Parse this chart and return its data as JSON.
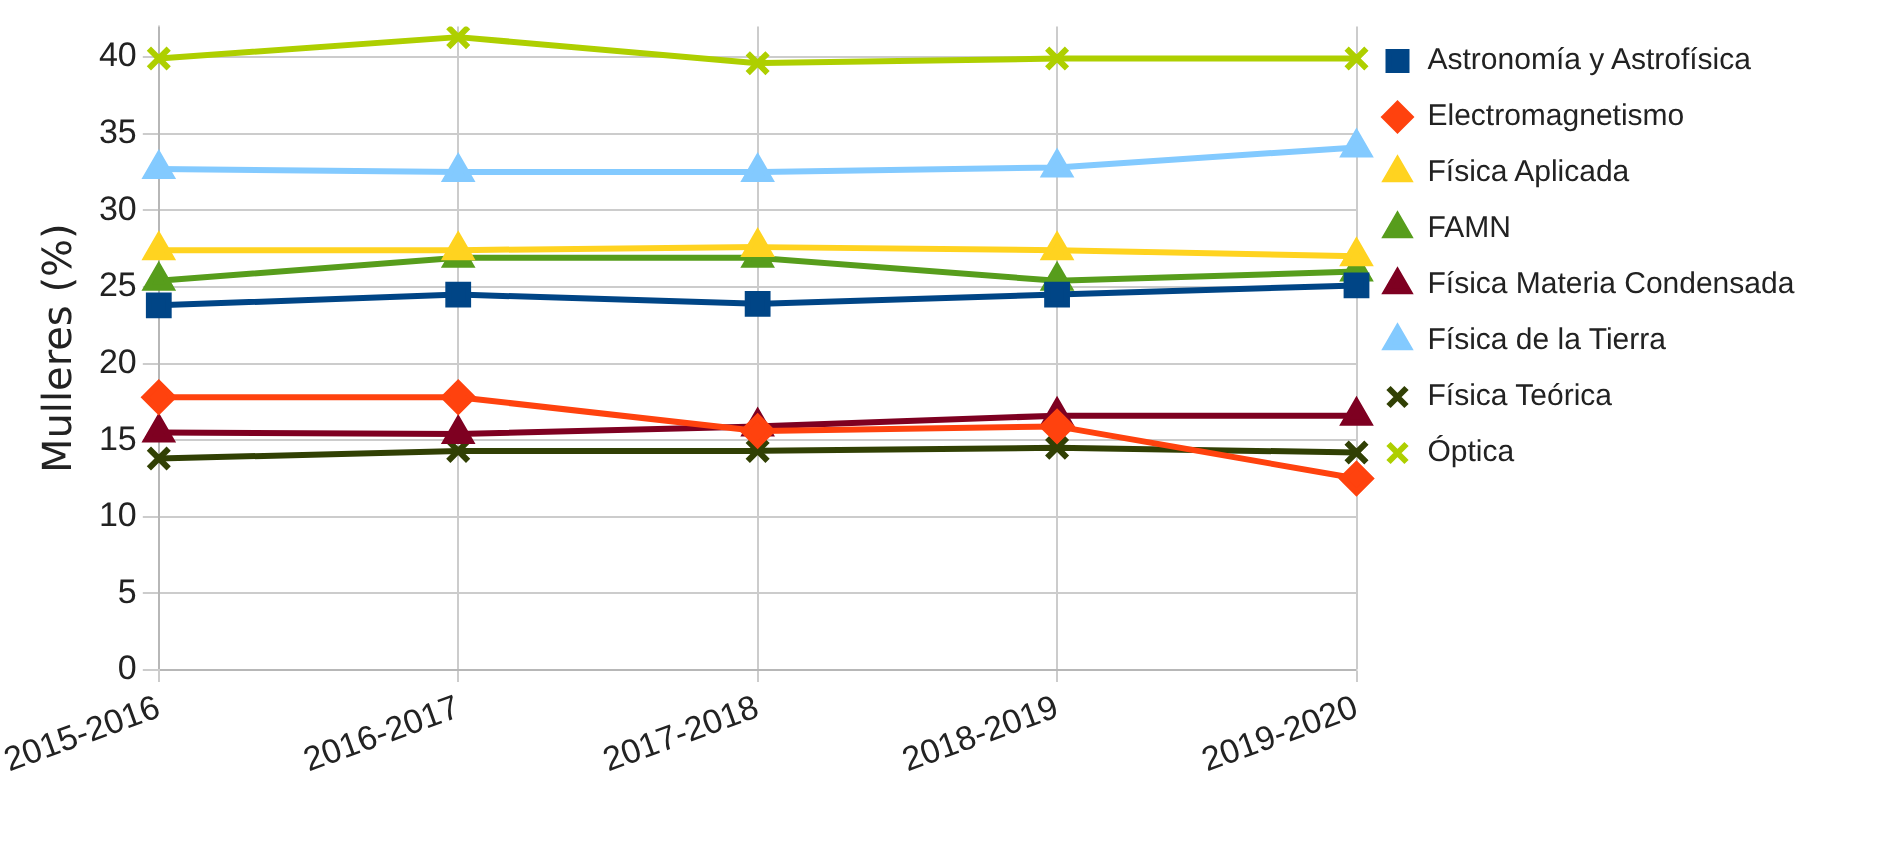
{
  "chart_data": {
    "type": "line",
    "ylabel": "Mulleres (%)",
    "categories": [
      "2015-2016",
      "2016-2017",
      "2017-2018",
      "2018-2019",
      "2019-2020"
    ],
    "ylim": [
      0,
      42
    ],
    "yticks": [
      0,
      5,
      10,
      15,
      20,
      25,
      30,
      35,
      40
    ],
    "grid": true,
    "legend": "right",
    "line_style": "solid",
    "series": [
      {
        "name": "Astronomía y Astrofísica",
        "color": "#004586",
        "marker": "square",
        "values": [
          23.8,
          24.5,
          23.9,
          24.5,
          25.1
        ]
      },
      {
        "name": "Electromagnetismo",
        "color": "#ff420e",
        "marker": "diamond",
        "values": [
          17.8,
          17.8,
          15.6,
          15.9,
          12.5
        ]
      },
      {
        "name": "Física Aplicada",
        "color": "#ffd320",
        "marker": "triangle",
        "values": [
          27.4,
          27.4,
          27.6,
          27.4,
          27.0
        ]
      },
      {
        "name": "FAMN",
        "color": "#579d1c",
        "marker": "triangle",
        "values": [
          25.4,
          26.9,
          26.9,
          25.4,
          26.0
        ]
      },
      {
        "name": "Física Materia Condensada",
        "color": "#7e0021",
        "marker": "triangle",
        "values": [
          15.5,
          15.4,
          15.9,
          16.6,
          16.6
        ]
      },
      {
        "name": "Física de la Tierra",
        "color": "#83caff",
        "marker": "triangle",
        "values": [
          32.7,
          32.5,
          32.5,
          32.8,
          34.1
        ]
      },
      {
        "name": "Física Teórica",
        "color": "#314004",
        "marker": "cross",
        "values": [
          13.8,
          14.3,
          14.3,
          14.5,
          14.2
        ]
      },
      {
        "name": "Óptica",
        "color": "#aecf00",
        "marker": "cross",
        "values": [
          39.9,
          41.3,
          39.6,
          39.9,
          39.9
        ]
      }
    ]
  }
}
